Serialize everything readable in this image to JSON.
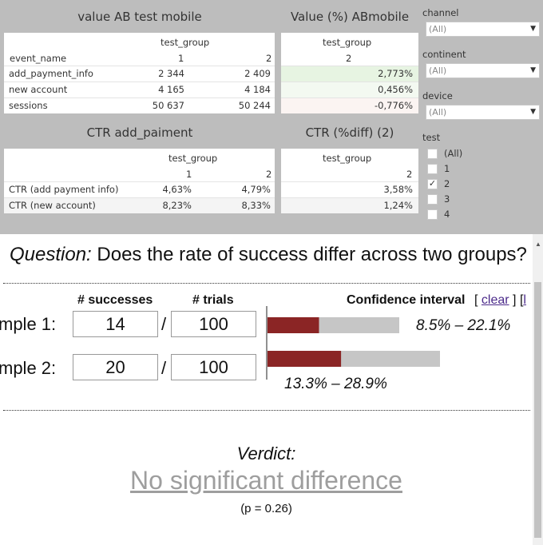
{
  "dashboard": {
    "value_table": {
      "title": "value AB test mobile",
      "group_header": "test_group",
      "row_header": "event_name",
      "col1": "1",
      "col2": "2",
      "rows": [
        {
          "name": "add_payment_info",
          "v1": "2 344",
          "v2": "2 409"
        },
        {
          "name": "new account",
          "v1": "4 165",
          "v2": "4 184"
        },
        {
          "name": "sessions",
          "v1": "50 637",
          "v2": "50 244"
        }
      ]
    },
    "pct_table": {
      "title": "Value (%) ABmobile",
      "group_header": "test_group",
      "col": "2",
      "rows": [
        {
          "value": "2,773%",
          "color": "#e7f4e2"
        },
        {
          "value": "0,456%",
          "color": "#f3f9f1"
        },
        {
          "value": "-0,776%",
          "color": "#fbf4f2"
        }
      ]
    },
    "ctr_table": {
      "title": "CTR add_paiment",
      "group_header": "test_group",
      "col1": "1",
      "col2": "2",
      "rows": [
        {
          "name": "CTR (add payment info)",
          "v1": "4,63%",
          "v2": "4,79%"
        },
        {
          "name": "CTR (new account)",
          "v1": "8,23%",
          "v2": "8,33%"
        }
      ]
    },
    "ctr_diff_table": {
      "title": "CTR (%diff) (2)",
      "group_header": "test_group",
      "col": "2",
      "rows": [
        {
          "value": "3,58%"
        },
        {
          "value": "1,24%"
        }
      ]
    },
    "filters": {
      "channel": {
        "label": "channel",
        "value": "(All)"
      },
      "continent": {
        "label": "continent",
        "value": "(All)"
      },
      "device": {
        "label": "device",
        "value": "(All)"
      },
      "test": {
        "label": "test",
        "options": [
          {
            "label": "(All)",
            "checked": false
          },
          {
            "label": "1",
            "checked": false
          },
          {
            "label": "2",
            "checked": true
          },
          {
            "label": "3",
            "checked": false
          },
          {
            "label": "4",
            "checked": false
          }
        ]
      }
    }
  },
  "calculator": {
    "question_prefix": "Question:",
    "question_text": "Does the rate of success differ across two groups?",
    "col_successes": "# successes",
    "col_trials": "# trials",
    "ci_header": "Confidence interval",
    "clear_open": "[",
    "clear_link": "clear",
    "clear_close": "] [",
    "partial_link": "l",
    "sample1": {
      "label": "mple 1:",
      "successes": "14",
      "trials": "100",
      "ci": "8.5% – 22.1%",
      "rate": 0.14
    },
    "sample2": {
      "label": "mple 2:",
      "successes": "20",
      "trials": "100",
      "ci": "13.3% – 28.9%",
      "rate": 0.2
    },
    "slash": "/",
    "verdict_label": "Verdict:",
    "verdict": "No significant difference",
    "p_value": "(p = 0.26)"
  },
  "colors": {
    "bar_fill": "#8b2525",
    "bar_track": "#c6c6c6",
    "dash_bg": "#bdbdbd"
  }
}
